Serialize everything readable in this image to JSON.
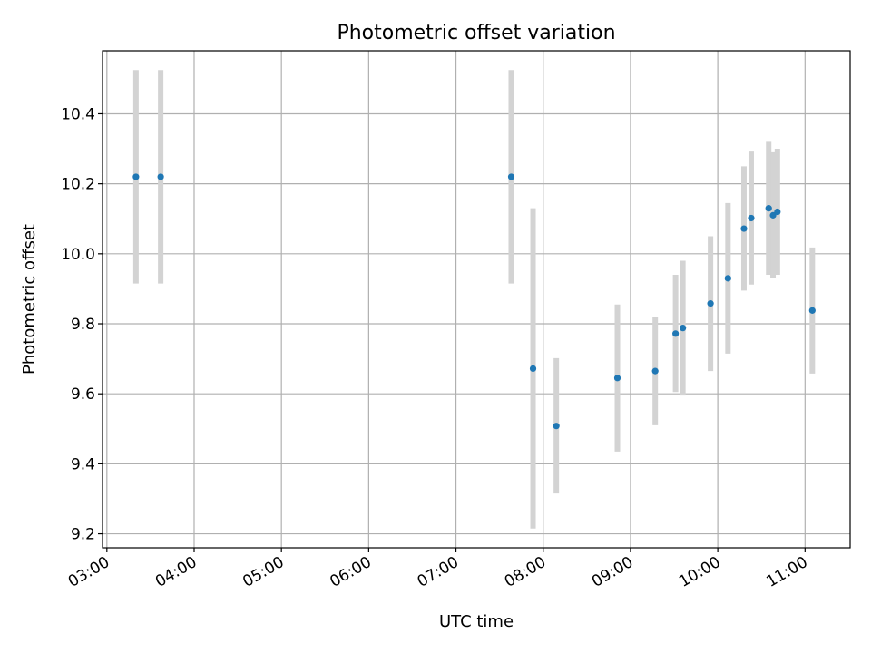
{
  "chart_data": {
    "type": "scatter",
    "title": "Photometric offset variation",
    "xlabel": "UTC time",
    "ylabel": "Photometric offset",
    "x_ticks": [
      "03:00",
      "04:00",
      "05:00",
      "06:00",
      "07:00",
      "08:00",
      "09:00",
      "10:00",
      "11:00"
    ],
    "y_ticks": [
      "9.2",
      "9.4",
      "9.6",
      "9.8",
      "10.0",
      "10.2",
      "10.4"
    ],
    "xlim": [
      "02:57",
      "11:31"
    ],
    "ylim": [
      9.16,
      10.58
    ],
    "grid": true,
    "marker_color": "#1f77b4",
    "errorbar_color": "#d3d3d3",
    "points": [
      {
        "x": "03:20",
        "y": 10.22,
        "ylow": 9.915,
        "yhigh": 10.525
      },
      {
        "x": "03:37",
        "y": 10.22,
        "ylow": 9.915,
        "yhigh": 10.525
      },
      {
        "x": "07:38",
        "y": 10.22,
        "ylow": 9.915,
        "yhigh": 10.525
      },
      {
        "x": "07:53",
        "y": 9.672,
        "ylow": 9.215,
        "yhigh": 10.13
      },
      {
        "x": "08:09",
        "y": 9.508,
        "ylow": 9.315,
        "yhigh": 9.702
      },
      {
        "x": "08:51",
        "y": 9.645,
        "ylow": 9.435,
        "yhigh": 9.855
      },
      {
        "x": "09:17",
        "y": 9.665,
        "ylow": 9.51,
        "yhigh": 9.82
      },
      {
        "x": "09:31",
        "y": 9.772,
        "ylow": 9.605,
        "yhigh": 9.94
      },
      {
        "x": "09:36",
        "y": 9.788,
        "ylow": 9.595,
        "yhigh": 9.98
      },
      {
        "x": "09:55",
        "y": 9.858,
        "ylow": 9.665,
        "yhigh": 10.05
      },
      {
        "x": "10:07",
        "y": 9.93,
        "ylow": 9.715,
        "yhigh": 10.145
      },
      {
        "x": "10:18",
        "y": 10.072,
        "ylow": 9.895,
        "yhigh": 10.25
      },
      {
        "x": "10:23",
        "y": 10.102,
        "ylow": 9.912,
        "yhigh": 10.292
      },
      {
        "x": "10:35",
        "y": 10.13,
        "ylow": 9.94,
        "yhigh": 10.32
      },
      {
        "x": "10:38",
        "y": 10.11,
        "ylow": 9.93,
        "yhigh": 10.29
      },
      {
        "x": "10:41",
        "y": 10.12,
        "ylow": 9.94,
        "yhigh": 10.3
      },
      {
        "x": "11:05",
        "y": 9.838,
        "ylow": 9.658,
        "yhigh": 10.018
      }
    ]
  }
}
